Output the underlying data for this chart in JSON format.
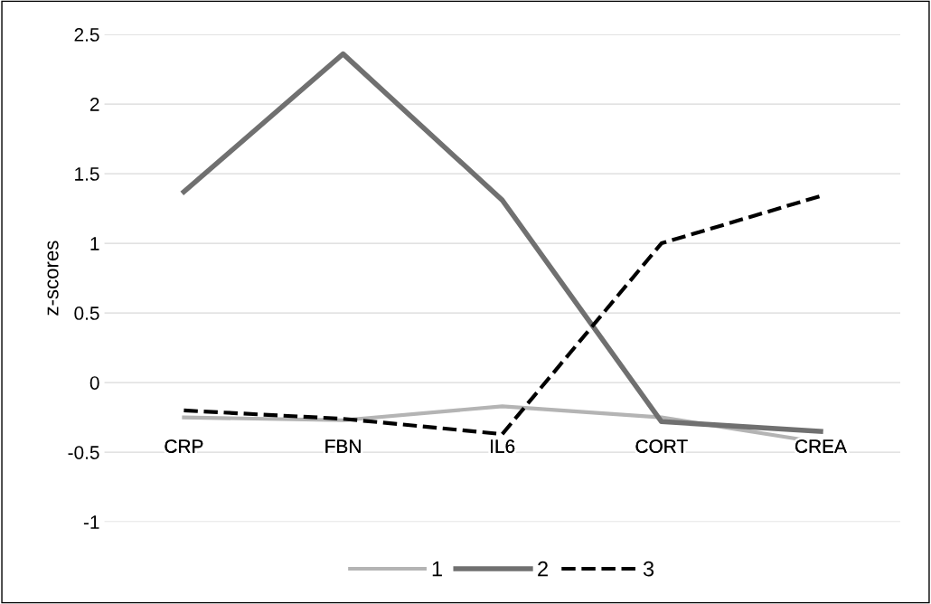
{
  "chart_data": {
    "type": "line",
    "ylabel": "z-scores",
    "categories": [
      "CRP",
      "FBN",
      "IL6",
      "CORT",
      "CREA"
    ],
    "series": [
      {
        "name": "1",
        "color": "#b4b4b4",
        "values": [
          -0.25,
          -0.27,
          -0.17,
          -0.25,
          -0.43
        ],
        "line_style": "solid"
      },
      {
        "name": "2",
        "color": "#707070",
        "values": [
          1.37,
          2.36,
          1.31,
          -0.28,
          -0.35
        ],
        "line_style": "solid"
      },
      {
        "name": "3",
        "color": "#000000",
        "values": [
          -0.2,
          -0.26,
          -0.37,
          1.0,
          1.34
        ],
        "line_style": "dashed"
      }
    ],
    "ylim": [
      -1,
      2.5
    ],
    "yticks": [
      -1,
      -0.5,
      0,
      0.5,
      1,
      1.5,
      2,
      2.5
    ],
    "grid": "y",
    "legend": "bottom",
    "marker": "none"
  }
}
